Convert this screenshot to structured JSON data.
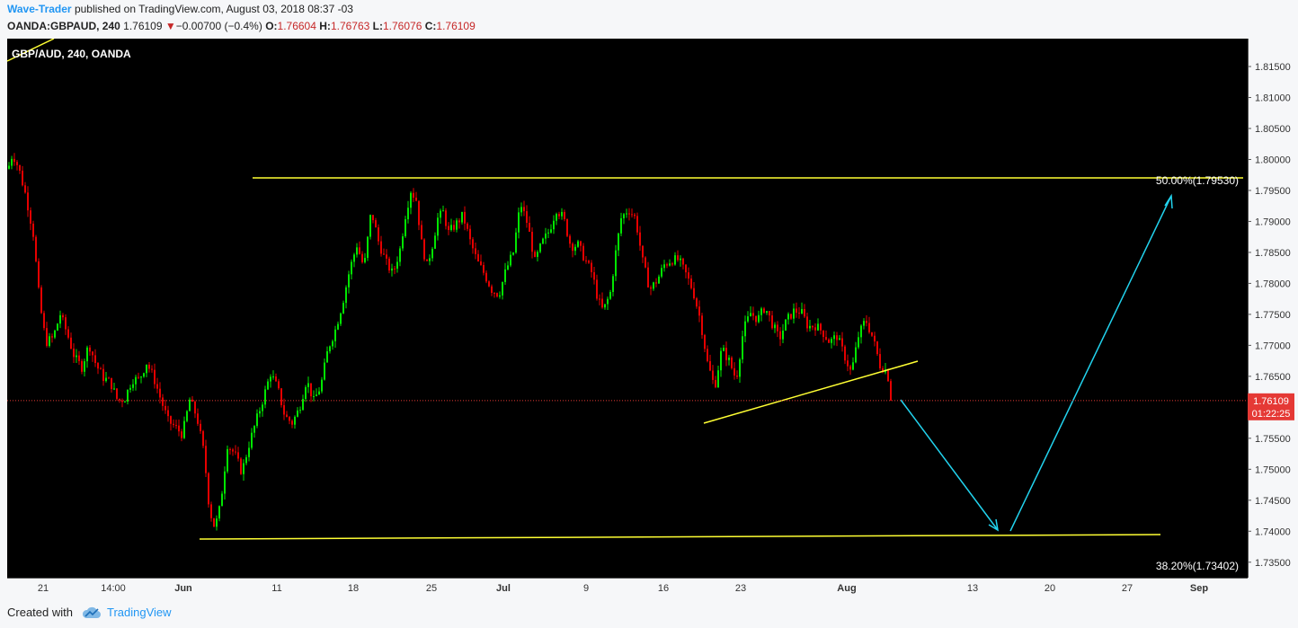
{
  "header": {
    "author": "Wave-Trader",
    "published_text": "published on TradingView.com, August 03, 2018 08:37 -03",
    "symbol": "OANDA:GBPAUD, 240",
    "last": "1.76109",
    "change_arrow": "▼",
    "change": "−0.00700 (−0.4%)",
    "o_label": "O:",
    "o_value": "1.76604",
    "h_label": "H:",
    "h_value": "1.76763",
    "l_label": "L:",
    "l_value": "1.76076",
    "c_label": "C:",
    "c_value": "1.76109"
  },
  "footer": {
    "created_with": "Created with",
    "brand": "TradingView",
    "brand_icon": "tradingview-cloud-icon"
  },
  "colors": {
    "background": "#000000",
    "up_candle": "#00e600",
    "down_candle": "#e60000",
    "trendline": "#ffff33",
    "arrow": "#22d3ee",
    "price_tag": "#e53935"
  },
  "chart_data": {
    "type": "candlestick",
    "title": "GBP/AUD, 240, OANDA",
    "ylim": [
      1.7325,
      1.8195
    ],
    "y_ticks": [
      "1.81500",
      "1.81000",
      "1.80500",
      "1.80000",
      "1.79500",
      "1.79000",
      "1.78500",
      "1.78000",
      "1.77500",
      "1.77000",
      "1.76500",
      "1.76000",
      "1.75500",
      "1.75000",
      "1.74500",
      "1.74000",
      "1.73500"
    ],
    "x_ticks": [
      "21",
      "14:00",
      "Jun",
      "11",
      "18",
      "25",
      "Jul",
      "9",
      "16",
      "23",
      "Aug",
      "13",
      "20",
      "27",
      "Sep"
    ],
    "bold_x_ticks": [
      "Jun",
      "Jul",
      "Aug",
      "Sep"
    ],
    "current_price": "1.76109",
    "countdown": "01:22:25",
    "annotations": [
      {
        "text": "50.00%(1.79530)"
      },
      {
        "text": "38.20%(1.73402)"
      }
    ],
    "price_path": [
      [
        0,
        1.7985
      ],
      [
        5,
        1.801
      ],
      [
        12,
        1.7985
      ],
      [
        20,
        1.794
      ],
      [
        28,
        1.788
      ],
      [
        35,
        1.777
      ],
      [
        42,
        1.7705
      ],
      [
        50,
        1.7712
      ],
      [
        58,
        1.775
      ],
      [
        66,
        1.7718
      ],
      [
        74,
        1.768
      ],
      [
        82,
        1.7665
      ],
      [
        90,
        1.7702
      ],
      [
        98,
        1.7668
      ],
      [
        106,
        1.7648
      ],
      [
        114,
        1.764
      ],
      [
        122,
        1.761
      ],
      [
        130,
        1.7615
      ],
      [
        138,
        1.7645
      ],
      [
        146,
        1.7645
      ],
      [
        154,
        1.7672
      ],
      [
        162,
        1.7648
      ],
      [
        170,
        1.7612
      ],
      [
        178,
        1.7578
      ],
      [
        186,
        1.7568
      ],
      [
        194,
        1.7556
      ],
      [
        202,
        1.7612
      ],
      [
        210,
        1.7585
      ],
      [
        218,
        1.7525
      ],
      [
        224,
        1.7435
      ],
      [
        230,
        1.7405
      ],
      [
        236,
        1.744
      ],
      [
        244,
        1.754
      ],
      [
        252,
        1.7525
      ],
      [
        260,
        1.7495
      ],
      [
        268,
        1.754
      ],
      [
        276,
        1.7578
      ],
      [
        284,
        1.7615
      ],
      [
        292,
        1.7655
      ],
      [
        300,
        1.763
      ],
      [
        308,
        1.7585
      ],
      [
        316,
        1.7575
      ],
      [
        324,
        1.7598
      ],
      [
        332,
        1.7645
      ],
      [
        340,
        1.761
      ],
      [
        348,
        1.7635
      ],
      [
        356,
        1.7695
      ],
      [
        364,
        1.7725
      ],
      [
        372,
        1.7768
      ],
      [
        380,
        1.7822
      ],
      [
        388,
        1.7862
      ],
      [
        396,
        1.7825
      ],
      [
        404,
        1.7918
      ],
      [
        412,
        1.7868
      ],
      [
        420,
        1.7835
      ],
      [
        428,
        1.7815
      ],
      [
        436,
        1.7855
      ],
      [
        442,
        1.791
      ],
      [
        448,
        1.795
      ],
      [
        454,
        1.7935
      ],
      [
        460,
        1.7865
      ],
      [
        466,
        1.7828
      ],
      [
        472,
        1.7862
      ],
      [
        478,
        1.7905
      ],
      [
        484,
        1.7915
      ],
      [
        490,
        1.7882
      ],
      [
        498,
        1.7895
      ],
      [
        506,
        1.791
      ],
      [
        514,
        1.7868
      ],
      [
        522,
        1.7835
      ],
      [
        530,
        1.7815
      ],
      [
        538,
        1.779
      ],
      [
        546,
        1.7782
      ],
      [
        554,
        1.7822
      ],
      [
        562,
        1.785
      ],
      [
        570,
        1.793
      ],
      [
        578,
        1.7895
      ],
      [
        586,
        1.7835
      ],
      [
        594,
        1.7865
      ],
      [
        602,
        1.7885
      ],
      [
        610,
        1.792
      ],
      [
        618,
        1.7905
      ],
      [
        626,
        1.786
      ],
      [
        634,
        1.7862
      ],
      [
        642,
        1.7838
      ],
      [
        650,
        1.7815
      ],
      [
        656,
        1.7775
      ],
      [
        662,
        1.7755
      ],
      [
        670,
        1.7785
      ],
      [
        676,
        1.785
      ],
      [
        682,
        1.7905
      ],
      [
        690,
        1.792
      ],
      [
        698,
        1.7905
      ],
      [
        706,
        1.7835
      ],
      [
        714,
        1.779
      ],
      [
        722,
        1.7805
      ],
      [
        730,
        1.783
      ],
      [
        738,
        1.7838
      ],
      [
        746,
        1.7838
      ],
      [
        754,
        1.7815
      ],
      [
        762,
        1.7788
      ],
      [
        770,
        1.7742
      ],
      [
        778,
        1.7672
      ],
      [
        786,
        1.7632
      ],
      [
        794,
        1.7695
      ],
      [
        802,
        1.7675
      ],
      [
        810,
        1.7645
      ],
      [
        818,
        1.7725
      ],
      [
        826,
        1.7752
      ],
      [
        834,
        1.7742
      ],
      [
        842,
        1.7762
      ],
      [
        850,
        1.7735
      ],
      [
        858,
        1.771
      ],
      [
        866,
        1.774
      ],
      [
        874,
        1.7755
      ],
      [
        882,
        1.7755
      ],
      [
        890,
        1.773
      ],
      [
        898,
        1.7732
      ],
      [
        906,
        1.7722
      ],
      [
        914,
        1.7705
      ],
      [
        922,
        1.7715
      ],
      [
        930,
        1.7685
      ],
      [
        938,
        1.7655
      ],
      [
        946,
        1.7715
      ],
      [
        954,
        1.7742
      ],
      [
        962,
        1.7712
      ],
      [
        970,
        1.7668
      ],
      [
        978,
        1.7658
      ],
      [
        983,
        1.7611
      ]
    ]
  }
}
